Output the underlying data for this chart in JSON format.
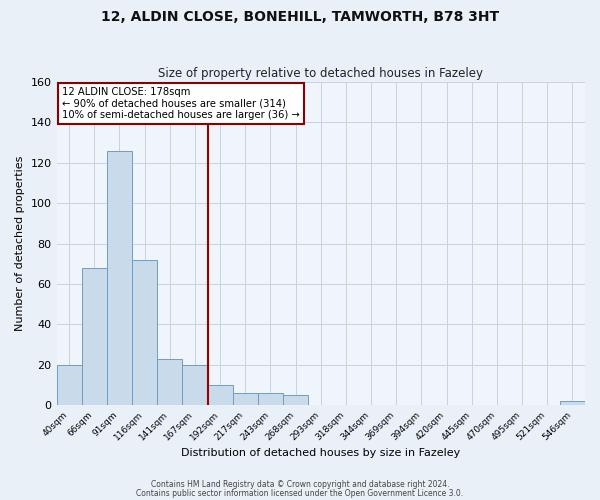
{
  "title": "12, ALDIN CLOSE, BONEHILL, TAMWORTH, B78 3HT",
  "subtitle": "Size of property relative to detached houses in Fazeley",
  "xlabel": "Distribution of detached houses by size in Fazeley",
  "ylabel": "Number of detached properties",
  "bin_labels": [
    "40sqm",
    "66sqm",
    "91sqm",
    "116sqm",
    "141sqm",
    "167sqm",
    "192sqm",
    "217sqm",
    "243sqm",
    "268sqm",
    "293sqm",
    "318sqm",
    "344sqm",
    "369sqm",
    "394sqm",
    "420sqm",
    "445sqm",
    "470sqm",
    "495sqm",
    "521sqm",
    "546sqm"
  ],
  "bar_heights": [
    20,
    68,
    126,
    72,
    23,
    20,
    10,
    6,
    6,
    5,
    0,
    0,
    0,
    0,
    0,
    0,
    0,
    0,
    0,
    0,
    2
  ],
  "bar_color": "#c9daea",
  "bar_edge_color": "#6b9fc8",
  "vline_x_index": 6,
  "vline_color": "#990000",
  "annotation_lines": [
    "12 ALDIN CLOSE: 178sqm",
    "← 90% of detached houses are smaller (314)",
    "10% of semi-detached houses are larger (36) →"
  ],
  "ylim": [
    0,
    160
  ],
  "yticks": [
    0,
    20,
    40,
    60,
    80,
    100,
    120,
    140,
    160
  ],
  "footer_line1": "Contains HM Land Registry data © Crown copyright and database right 2024.",
  "footer_line2": "Contains public sector information licensed under the Open Government Licence 3.0.",
  "bg_color": "#eaf0f7",
  "plot_bg_color": "#f0f5fb",
  "grid_color": "#c5d3e0",
  "title_fontsize": 10,
  "subtitle_fontsize": 8.5
}
